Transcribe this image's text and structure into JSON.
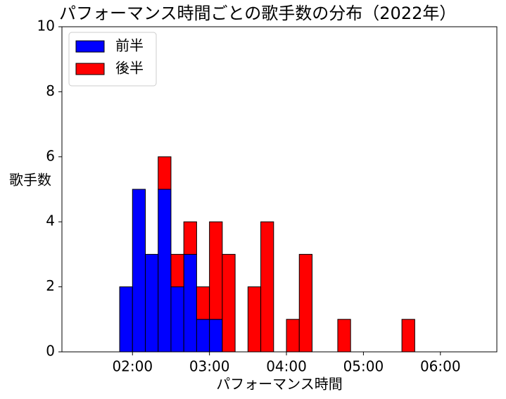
{
  "chart_data": {
    "type": "histogram",
    "title": "パフォーマンス時間ごとの歌手数の分布（2022年）",
    "xlabel": "パフォーマンス時間",
    "ylabel": "歌手数",
    "stacked": true,
    "legend": "upper left",
    "bins": [
      80,
      90,
      100,
      110,
      120,
      130,
      140,
      150,
      160,
      170,
      180,
      190,
      200,
      210,
      220,
      230,
      240,
      250,
      260,
      270,
      280,
      290,
      300,
      310,
      320,
      330,
      340,
      350,
      360,
      370,
      380,
      390
    ],
    "series": [
      {
        "name": "前半",
        "color": "#0000ff",
        "values": [
          0,
          0,
          0,
          2,
          5,
          3,
          5,
          2,
          3,
          1,
          1,
          0,
          0,
          0,
          0,
          0,
          0,
          0,
          0,
          0,
          0,
          0,
          0,
          0,
          0,
          0,
          0,
          0,
          0,
          0,
          0
        ]
      },
      {
        "name": "後半",
        "color": "#ff0000",
        "values": [
          0,
          0,
          0,
          0,
          0,
          0,
          1,
          1,
          1,
          1,
          3,
          3,
          0,
          2,
          4,
          0,
          1,
          3,
          0,
          0,
          1,
          0,
          0,
          0,
          0,
          1,
          0,
          0,
          0,
          0,
          0
        ]
      }
    ],
    "xlim": [
      65,
      404
    ],
    "xticks": [
      {
        "value": 120,
        "label": "02:00"
      },
      {
        "value": 180,
        "label": "03:00"
      },
      {
        "value": 240,
        "label": "04:00"
      },
      {
        "value": 300,
        "label": "05:00"
      },
      {
        "value": 360,
        "label": "06:00"
      }
    ],
    "ylim": [
      0,
      10
    ],
    "yticks": [
      0,
      2,
      4,
      6,
      8,
      10
    ]
  }
}
